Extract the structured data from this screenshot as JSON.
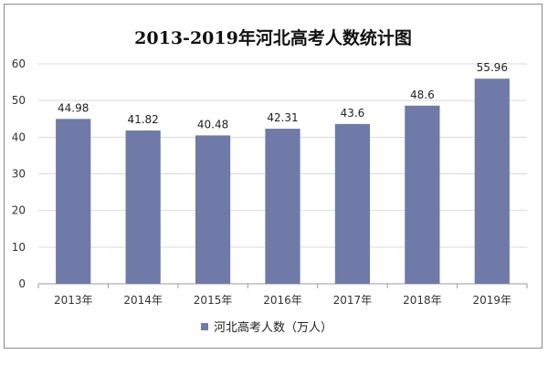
{
  "chart_data": {
    "type": "bar",
    "title": "2013-2019年河北高考人数统计图",
    "categories": [
      "2013年",
      "2014年",
      "2015年",
      "2016年",
      "2017年",
      "2018年",
      "2019年"
    ],
    "series": [
      {
        "name": "河北高考人数（万人）",
        "values": [
          44.98,
          41.82,
          40.48,
          42.31,
          43.6,
          48.6,
          55.96
        ],
        "color": "#6f7aa8"
      }
    ],
    "data_labels": [
      "44.98",
      "41.82",
      "40.48",
      "42.31",
      "43.6",
      "48.6",
      "55.96"
    ],
    "ylim": [
      0,
      60
    ],
    "yticks": [
      0,
      10,
      20,
      30,
      40,
      50,
      60
    ],
    "grid": true,
    "legend_position": "bottom"
  }
}
